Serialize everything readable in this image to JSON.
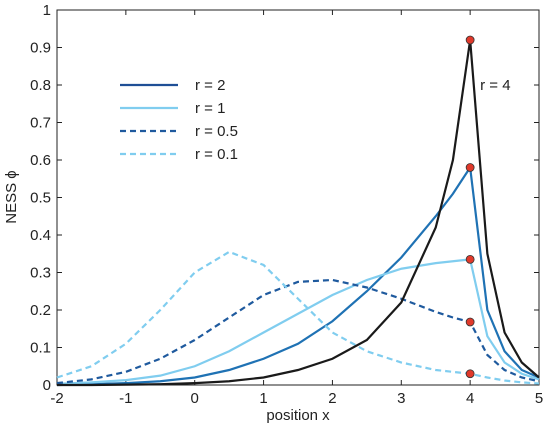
{
  "chart_data": {
    "type": "line",
    "x_label": "position x",
    "y_label": "NESS ϕ",
    "xlim": [
      -2,
      5
    ],
    "ylim": [
      0,
      1
    ],
    "xticks": [
      -2,
      -1,
      0,
      1,
      2,
      3,
      4,
      5
    ],
    "yticks": [
      0,
      0.1,
      0.2,
      0.3,
      0.4,
      0.5,
      0.6,
      0.7,
      0.8,
      0.9,
      1
    ],
    "x": [
      -2,
      -1.5,
      -1,
      -0.5,
      0,
      0.5,
      1,
      1.5,
      2,
      2.5,
      3,
      3.5,
      3.75,
      4,
      4.25,
      4.5,
      4.75,
      5
    ],
    "marker_color": "#e0392b",
    "marker_index": 13,
    "series": [
      {
        "name": "r = 2",
        "color": "#1f72b4",
        "legend_color": "#1f4f96",
        "dashed": false,
        "legend": true,
        "values": [
          0,
          0.002,
          0.005,
          0.01,
          0.02,
          0.04,
          0.07,
          0.11,
          0.17,
          0.25,
          0.34,
          0.45,
          0.51,
          0.58,
          0.2,
          0.09,
          0.04,
          0.02
        ]
      },
      {
        "name": "r = 1",
        "color": "#80cdef",
        "legend_color": "#80cdef",
        "dashed": false,
        "legend": true,
        "values": [
          0.003,
          0.007,
          0.013,
          0.025,
          0.05,
          0.09,
          0.14,
          0.19,
          0.24,
          0.28,
          0.31,
          0.325,
          0.33,
          0.335,
          0.13,
          0.06,
          0.03,
          0.015
        ]
      },
      {
        "name": "r = 0.5",
        "color": "#1f5a9e",
        "legend_color": "#1f5a9e",
        "dashed": true,
        "legend": true,
        "values": [
          0.005,
          0.015,
          0.035,
          0.07,
          0.12,
          0.18,
          0.24,
          0.275,
          0.28,
          0.26,
          0.23,
          0.195,
          0.18,
          0.168,
          0.08,
          0.04,
          0.02,
          0.01
        ]
      },
      {
        "name": "r = 0.1",
        "color": "#80cdef",
        "legend_color": "#80cdef",
        "dashed": true,
        "legend": true,
        "values": [
          0.02,
          0.05,
          0.11,
          0.2,
          0.3,
          0.355,
          0.32,
          0.23,
          0.14,
          0.09,
          0.06,
          0.04,
          0.035,
          0.03,
          0.02,
          0.012,
          0.007,
          0.004
        ]
      },
      {
        "name": "r = 4",
        "color": "#1a1a1a",
        "legend_color": "#1a1a1a",
        "dashed": false,
        "legend": false,
        "values": [
          0,
          0,
          0.001,
          0.002,
          0.005,
          0.01,
          0.02,
          0.04,
          0.07,
          0.12,
          0.22,
          0.42,
          0.6,
          0.92,
          0.35,
          0.14,
          0.06,
          0.02
        ]
      }
    ]
  }
}
